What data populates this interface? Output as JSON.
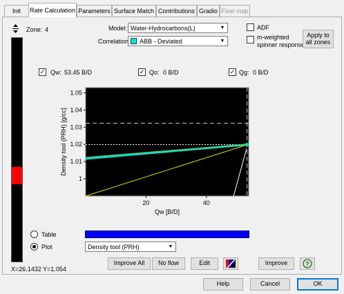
{
  "tabs": [
    {
      "label": "Init",
      "state": "normal"
    },
    {
      "label": "Rate Calculation",
      "state": "active"
    },
    {
      "label": "Parameters",
      "state": "normal"
    },
    {
      "label": "Surface Match",
      "state": "normal"
    },
    {
      "label": "Contributions",
      "state": "normal"
    },
    {
      "label": "Gradio",
      "state": "normal"
    },
    {
      "label": "Flow map",
      "state": "disabled"
    }
  ],
  "zone": {
    "label": "Zone:",
    "value": "4"
  },
  "model": {
    "label": "Model:",
    "value": "Water-Hydrocarbons(L)"
  },
  "correlation": {
    "label": "Correlation",
    "value": "ABB - Deviated",
    "swatch": "#00e5e5"
  },
  "adf": {
    "label": "ADF",
    "checked": false
  },
  "m_weighted": {
    "label_line1": "m-weighted",
    "label_line2": "spinner response",
    "checked": false
  },
  "apply_all": {
    "line1": "Apply to",
    "line2": "all zones"
  },
  "phases": {
    "qw": {
      "label": "Qw:",
      "value": "53.45 B/D",
      "checked": true
    },
    "qo": {
      "label": "Qo:",
      "value": "0 B/D",
      "checked": true
    },
    "qg": {
      "label": "Qg:",
      "value": "0 B/D",
      "checked": true
    }
  },
  "view_mode": {
    "table_label": "Table",
    "plot_label": "Plot",
    "selected": "Plot",
    "plot_select": "Density tool (PRH)",
    "bar_color": "#0000ff"
  },
  "buttons": {
    "improve_all": "Improve All",
    "no_flow": "No flow",
    "edit": "Edit",
    "improve": "Improve",
    "help": "Help",
    "cancel": "Cancel",
    "ok": "OK"
  },
  "cursor_readout": "X=26.1432 Y=1.054",
  "chart_data": {
    "type": "line",
    "xlabel": "Qw  [B/D]",
    "ylabel": "Density tool (PRH)  [g/cc]",
    "xlim": [
      0,
      54
    ],
    "ylim": [
      0.99,
      1.053
    ],
    "x_ticks": [
      20,
      40
    ],
    "y_ticks": [
      1,
      1.01,
      1.02,
      1.03,
      1.04,
      1.05
    ],
    "y_tick_labels": [
      "1",
      "1.01",
      "1.02",
      "1.03",
      "1.04",
      "1.05"
    ],
    "background": "#000000",
    "series": [
      {
        "color": "#00e5c8",
        "x": [
          0,
          53.45
        ],
        "y": [
          1.0117,
          1.0199
        ]
      },
      {
        "color": "#8fa050",
        "x": [
          0,
          53.45
        ],
        "y": [
          1.0125,
          1.0202
        ]
      },
      {
        "color": "#d8d800",
        "x": [
          0,
          53.45
        ],
        "y": [
          0.99,
          1.0198
        ]
      },
      {
        "color": "#ffffff",
        "x": [
          49,
          53.3
        ],
        "y": [
          0.99,
          1.0175
        ]
      }
    ],
    "ref_lines": {
      "horizontal_dotted_y": 1.0199,
      "horizontal_dashed_y": 1.0323,
      "vertical_dashed_x": 53.45
    },
    "marker": {
      "x": 53.45,
      "y": 1.0199
    }
  },
  "colors": {
    "accent": "#0078d7",
    "depth_track_red": "#ff0000",
    "depth_track_bg": "#000000"
  }
}
